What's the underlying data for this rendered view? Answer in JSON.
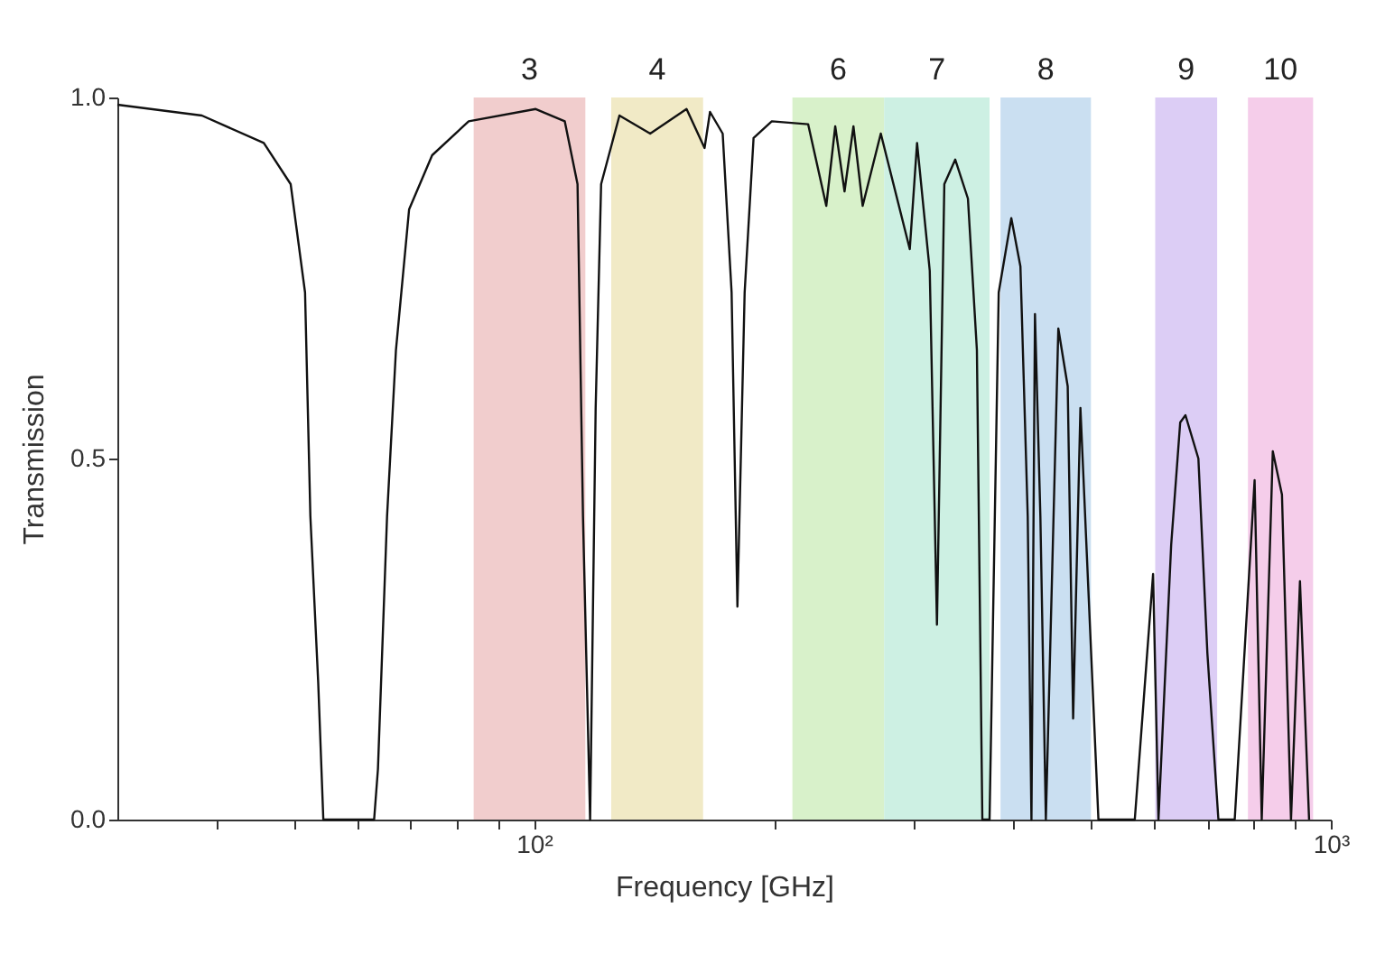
{
  "chart_data": {
    "type": "line",
    "xlabel": "Frequency  [GHz]",
    "ylabel": "Transmission",
    "log": "x",
    "grid": false,
    "marker": "none",
    "line_style": "solid",
    "xlim": [
      30,
      1000
    ],
    "ylim": [
      0,
      1
    ],
    "xticks": [
      {
        "value": 40,
        "label": null
      },
      {
        "value": 50,
        "label": null
      },
      {
        "value": 60,
        "label": null
      },
      {
        "value": 70,
        "label": null
      },
      {
        "value": 80,
        "label": null
      },
      {
        "value": 90,
        "label": null
      },
      {
        "value": 100,
        "label": "10²"
      },
      {
        "value": 200,
        "label": null
      },
      {
        "value": 300,
        "label": null
      },
      {
        "value": 400,
        "label": null
      },
      {
        "value": 500,
        "label": null
      },
      {
        "value": 600,
        "label": null
      },
      {
        "value": 700,
        "label": null
      },
      {
        "value": 800,
        "label": null
      },
      {
        "value": 900,
        "label": null
      },
      {
        "value": 1000,
        "label": "10³"
      }
    ],
    "yticks": [
      {
        "value": 0,
        "label": "0.0"
      },
      {
        "value": 0.5,
        "label": "0.5"
      },
      {
        "value": 1,
        "label": "1.0"
      }
    ],
    "bands": [
      {
        "axis": "x",
        "from": 84,
        "to": 116,
        "label": "3",
        "color": "#f0c8c8"
      },
      {
        "axis": "x",
        "from": 125,
        "to": 163,
        "label": "4",
        "color": "#f0e8c0"
      },
      {
        "axis": "x",
        "from": 211,
        "to": 275,
        "label": "6",
        "color": "#d4f0c4"
      },
      {
        "axis": "x",
        "from": 275,
        "to": 373,
        "label": "7",
        "color": "#c8eee0"
      },
      {
        "axis": "x",
        "from": 385,
        "to": 500,
        "label": "8",
        "color": "#c4dcf0"
      },
      {
        "axis": "x",
        "from": 602,
        "to": 720,
        "label": "9",
        "color": "#d8c8f4"
      },
      {
        "axis": "x",
        "from": 787,
        "to": 950,
        "label": "10",
        "color": "#f4c8e8"
      }
    ],
    "series": [
      {
        "color": "#111111",
        "x": [
          30,
          38.3,
          45.8,
          49.5,
          51.6,
          52.4,
          53.6,
          54.4,
          63.0,
          63.7,
          65.4,
          67.1,
          69.7,
          74.5,
          82.8,
          100.5,
          109.3,
          113.4,
          115.2,
          117.6,
          119.5,
          121.4,
          128,
          139.9,
          155.4,
          163.7,
          166.3,
          172.5,
          177,
          180,
          183.8,
          188.6,
          198.8,
          220.8,
          232.7,
          238.8,
          245.3,
          251.7,
          258.5,
          272.4,
          296.2,
          302.5,
          313.8,
          320.4,
          327.3,
          337.8,
          350.4,
          359.6,
          365.3,
          373,
          383,
          397.2,
          407.8,
          416.5,
          421,
          425.3,
          432,
          438.9,
          455,
          467.5,
          474.9,
          485,
          510.9,
          567.5,
          598.3,
          607.7,
          630.4,
          647.1,
          657,
          682,
          700,
          722.6,
          757.5,
          802.3,
          819,
          845.6,
          868.3,
          891.3,
          914.7,
          939.1
        ],
        "values": [
          0.99,
          0.975,
          0.937,
          0.88,
          0.73,
          0.42,
          0.19,
          0,
          0,
          0.07,
          0.42,
          0.65,
          0.845,
          0.92,
          0.967,
          0.984,
          0.967,
          0.88,
          0.42,
          0,
          0.57,
          0.88,
          0.975,
          0.95,
          0.984,
          0.93,
          0.98,
          0.95,
          0.73,
          0.295,
          0.73,
          0.944,
          0.967,
          0.963,
          0.85,
          0.96,
          0.87,
          0.96,
          0.85,
          0.95,
          0.79,
          0.937,
          0.76,
          0.27,
          0.88,
          0.914,
          0.86,
          0.65,
          0,
          0,
          0.73,
          0.833,
          0.766,
          0.42,
          0,
          0.7,
          0.42,
          0,
          0.68,
          0.6,
          0.14,
          0.57,
          0,
          0,
          0.34,
          0,
          0.38,
          0.55,
          0.56,
          0.5,
          0.23,
          0,
          0,
          0.47,
          0,
          0.51,
          0.45,
          0,
          0.33,
          0
        ]
      }
    ]
  }
}
